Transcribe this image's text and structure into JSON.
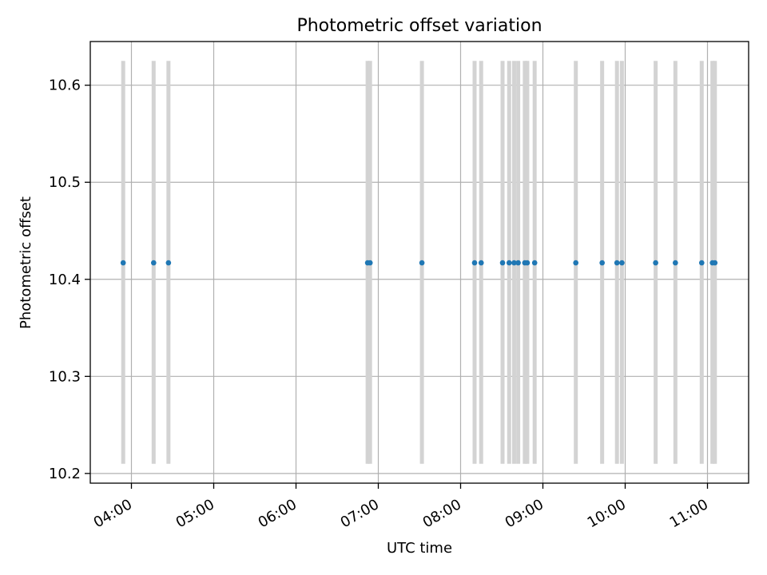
{
  "chart_data": {
    "type": "scatter",
    "title": "Photometric offset variation",
    "xlabel": "UTC time",
    "ylabel": "Photometric offset",
    "x_unit": "hours_utc",
    "xlim": [
      3.5,
      11.5
    ],
    "ylim": [
      10.19,
      10.645
    ],
    "x_ticks": [
      {
        "value": 4,
        "label": "04:00"
      },
      {
        "value": 5,
        "label": "05:00"
      },
      {
        "value": 6,
        "label": "06:00"
      },
      {
        "value": 7,
        "label": "07:00"
      },
      {
        "value": 8,
        "label": "08:00"
      },
      {
        "value": 9,
        "label": "09:00"
      },
      {
        "value": 10,
        "label": "10:00"
      },
      {
        "value": 11,
        "label": "11:00"
      }
    ],
    "y_ticks": [
      {
        "value": 10.2,
        "label": "10.2"
      },
      {
        "value": 10.3,
        "label": "10.3"
      },
      {
        "value": 10.4,
        "label": "10.4"
      },
      {
        "value": 10.5,
        "label": "10.5"
      },
      {
        "value": 10.6,
        "label": "10.6"
      }
    ],
    "grid": true,
    "error_bar_color": "#d3d3d3",
    "marker_color": "#1f77b4",
    "y_value": 10.417,
    "y_error_low": 10.21,
    "y_error_high": 10.625,
    "x": [
      3.9,
      4.27,
      4.45,
      6.87,
      6.9,
      7.53,
      8.17,
      8.25,
      8.51,
      8.59,
      8.65,
      8.7,
      8.78,
      8.81,
      8.9,
      9.4,
      9.72,
      9.9,
      9.96,
      10.37,
      10.61,
      10.93,
      11.06,
      11.09
    ]
  }
}
